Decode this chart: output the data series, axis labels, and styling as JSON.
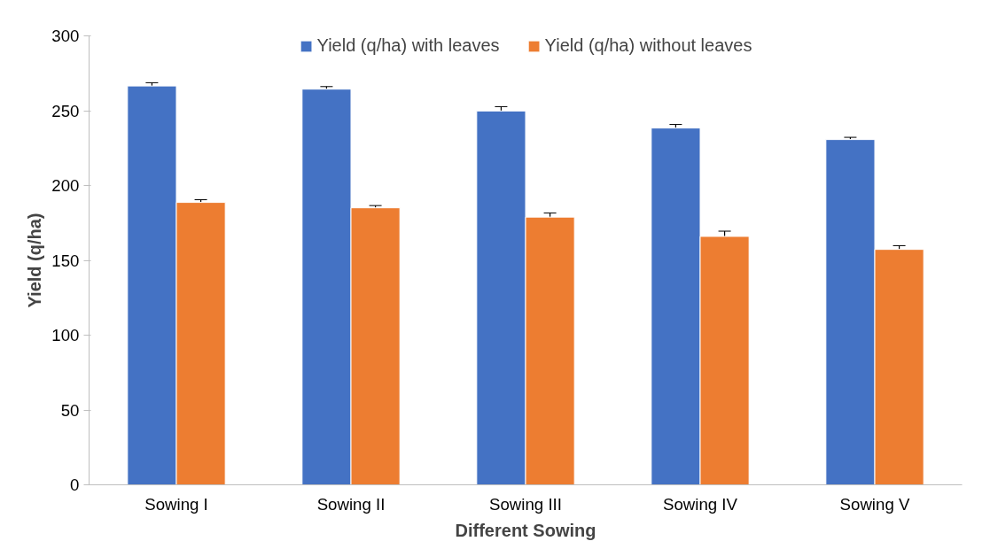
{
  "chart_data": {
    "type": "bar",
    "xlabel": "Different Sowing",
    "ylabel": "Yield (q/ha)",
    "categories": [
      "Sowing I",
      "Sowing II",
      "Sowing III",
      "Sowing IV",
      "Sowing V"
    ],
    "series": [
      {
        "name": "Yield (q/ha) with leaves",
        "color": "#4472c4",
        "values": [
          266.5,
          264.4,
          249.8,
          238.4,
          230.7
        ],
        "errors": [
          2.2,
          1.7,
          2.9,
          2.4,
          1.5
        ]
      },
      {
        "name": "Yield (q/ha) without leaves",
        "color": "#ed7d31",
        "values": [
          188.7,
          185.1,
          178.9,
          166,
          157.3
        ],
        "errors": [
          1.8,
          1.5,
          2.7,
          3.5,
          2.5
        ]
      }
    ],
    "ylim": [
      0,
      300
    ],
    "yticks": [
      0,
      50,
      100,
      150,
      200,
      250,
      300
    ],
    "grid": false,
    "legend": "top"
  }
}
